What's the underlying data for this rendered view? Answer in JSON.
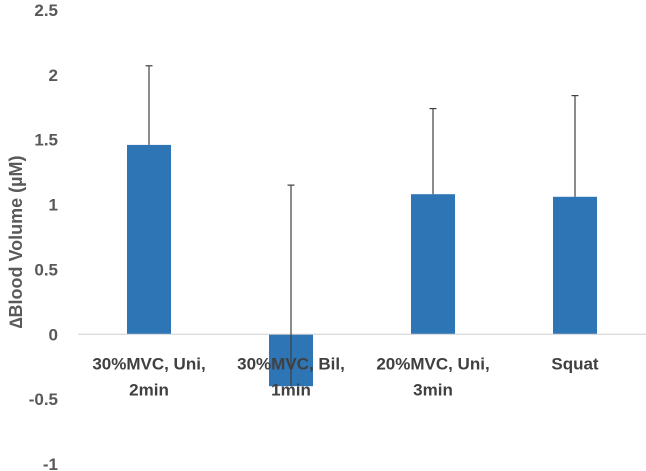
{
  "chart_data": {
    "type": "bar",
    "title": "",
    "xlabel": "",
    "ylabel": "∆Blood Volume (µM)",
    "ylim": [
      -1,
      2.5
    ],
    "yticks": [
      "2.5",
      "2",
      "1.5",
      "1",
      "0.5",
      "0",
      "-0.5",
      "-1"
    ],
    "ytick_values": [
      2.5,
      2,
      1.5,
      1,
      0.5,
      0,
      -0.5,
      -1
    ],
    "categories": [
      [
        "30%MVC, Uni,",
        "2min"
      ],
      [
        "30%MVC, Bil,",
        "1min"
      ],
      [
        "20%MVC, Uni,",
        "3min"
      ],
      [
        "Squat"
      ]
    ],
    "values": [
      1.46,
      -0.4,
      1.08,
      1.06
    ],
    "error_upper": [
      2.07,
      1.15,
      1.74,
      1.84
    ],
    "bar_color": "#2E75B6",
    "error_color": "#404040",
    "grid": false,
    "legend": "none"
  }
}
